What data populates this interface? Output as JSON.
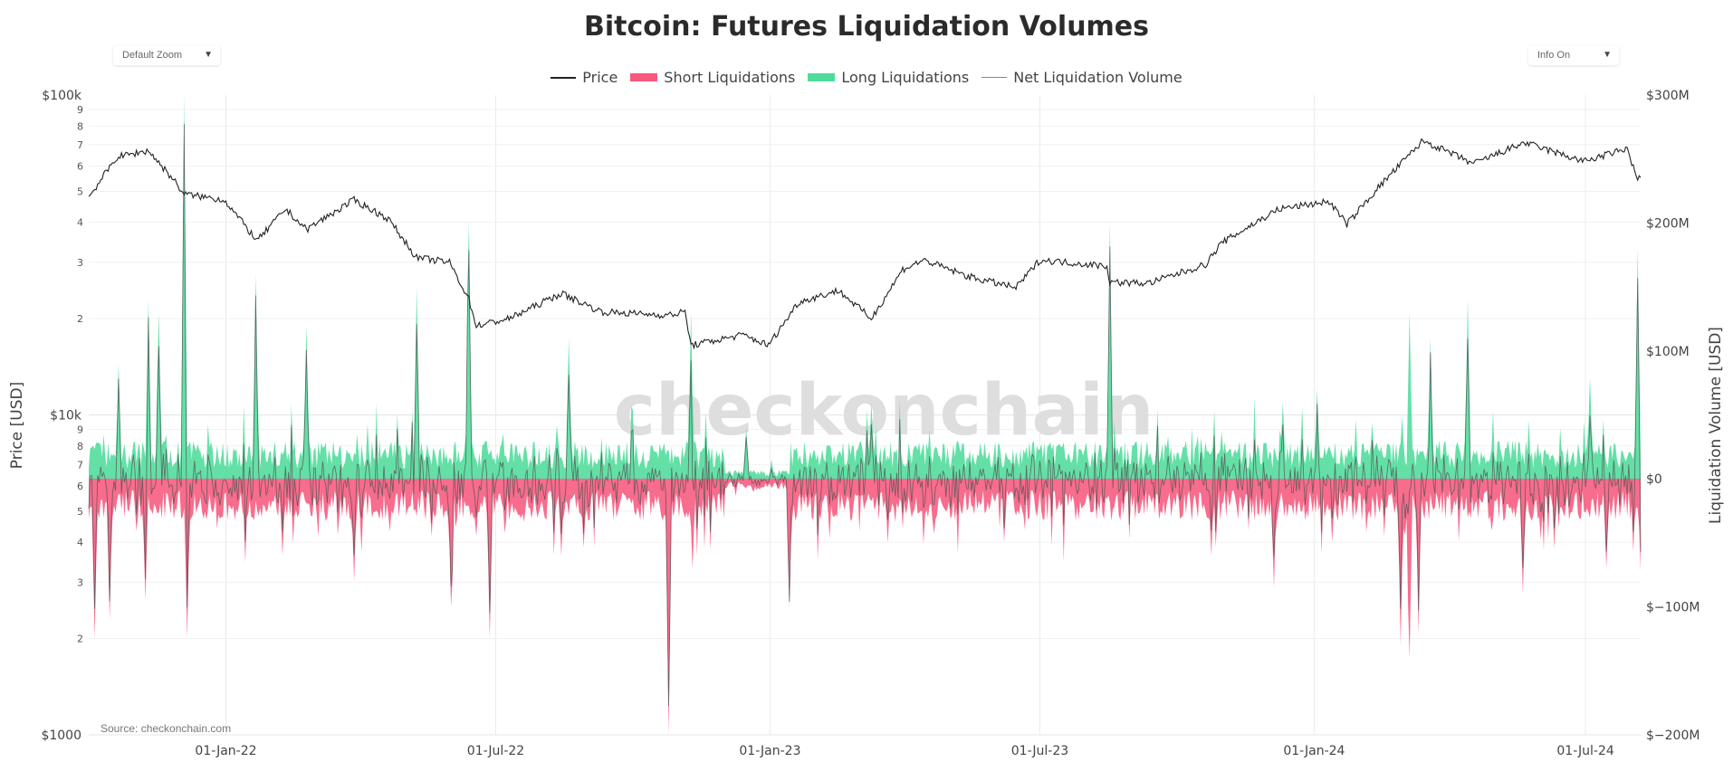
{
  "title": "Bitcoin: Futures Liquidation Volumes",
  "controls": {
    "zoom_label": "Default Zoom",
    "info_label": "Info On"
  },
  "legend": {
    "price": "Price",
    "short": "Short Liquidations",
    "long": "Long Liquidations",
    "net": "Net Liquidation Volume"
  },
  "axes": {
    "left_title": "Price [USD]",
    "right_title": "Liquidation Volume [USD]"
  },
  "source": "Source: checkonchain.com",
  "watermark": "checkonchain",
  "colors": {
    "price": "#222222",
    "short": "#f7587d",
    "long": "#4fdc9b",
    "net": "#555555",
    "grid": "#ebebeb"
  },
  "chart_data": {
    "type": "line",
    "xrange": [
      "2021-10-01",
      "2024-08-07"
    ],
    "x_ticks": [
      "01-Jan-22",
      "01-Jul-22",
      "01-Jan-23",
      "01-Jul-23",
      "01-Jan-24",
      "01-Jul-24"
    ],
    "y_left": {
      "scale": "log",
      "range": [
        1000,
        100000
      ],
      "major_ticks": [
        {
          "value": 1000,
          "label": "$1000"
        },
        {
          "value": 10000,
          "label": "$10k"
        },
        {
          "value": 100000,
          "label": "$100k"
        }
      ],
      "minor_tick_labels": [
        "2",
        "3",
        "4",
        "5",
        "6",
        "7",
        "8",
        "9"
      ]
    },
    "y_right": {
      "scale": "linear",
      "range": [
        -200,
        300
      ],
      "unit": "M USD",
      "ticks": [
        {
          "value": 300,
          "label": "$300M"
        },
        {
          "value": 200,
          "label": "$200M"
        },
        {
          "value": 100,
          "label": "$100M"
        },
        {
          "value": 0,
          "label": "$0"
        },
        {
          "value": -100,
          "label": "$−100M"
        },
        {
          "value": -200,
          "label": "$−200M"
        }
      ]
    },
    "series": [
      {
        "name": "Price",
        "axis": "left",
        "points": [
          [
            "2021-10-01",
            48000
          ],
          [
            "2021-10-20",
            64000
          ],
          [
            "2021-11-10",
            67000
          ],
          [
            "2021-11-26",
            55000
          ],
          [
            "2021-12-04",
            49000
          ],
          [
            "2021-12-31",
            47000
          ],
          [
            "2022-01-22",
            35000
          ],
          [
            "2022-02-10",
            44000
          ],
          [
            "2022-02-24",
            38000
          ],
          [
            "2022-03-28",
            47000
          ],
          [
            "2022-04-20",
            41000
          ],
          [
            "2022-05-09",
            31000
          ],
          [
            "2022-05-31",
            30000
          ],
          [
            "2022-06-13",
            23000
          ],
          [
            "2022-06-18",
            19000
          ],
          [
            "2022-07-10",
            20000
          ],
          [
            "2022-08-14",
            24000
          ],
          [
            "2022-09-10",
            21000
          ],
          [
            "2022-10-25",
            20500
          ],
          [
            "2022-11-05",
            21000
          ],
          [
            "2022-11-09",
            16500
          ],
          [
            "2022-12-14",
            17800
          ],
          [
            "2022-12-31",
            16500
          ],
          [
            "2023-01-20",
            22500
          ],
          [
            "2023-02-16",
            24500
          ],
          [
            "2023-03-10",
            20000
          ],
          [
            "2023-03-31",
            28500
          ],
          [
            "2023-04-14",
            30500
          ],
          [
            "2023-05-15",
            27000
          ],
          [
            "2023-06-15",
            25000
          ],
          [
            "2023-07-01",
            30500
          ],
          [
            "2023-08-15",
            29200
          ],
          [
            "2023-08-17",
            26000
          ],
          [
            "2023-09-12",
            25800
          ],
          [
            "2023-10-20",
            29500
          ],
          [
            "2023-10-31",
            34500
          ],
          [
            "2023-12-08",
            44000
          ],
          [
            "2024-01-11",
            46500
          ],
          [
            "2024-01-23",
            39500
          ],
          [
            "2024-02-14",
            52000
          ],
          [
            "2024-03-14",
            72000
          ],
          [
            "2024-04-17",
            61000
          ],
          [
            "2024-05-21",
            71000
          ],
          [
            "2024-06-30",
            62000
          ],
          [
            "2024-07-29",
            68000
          ],
          [
            "2024-08-05",
            54000
          ],
          [
            "2024-08-07",
            56000
          ]
        ]
      },
      {
        "name": "Long Liquidations",
        "axis": "right",
        "baseline_musd": 20,
        "spikes": [
          [
            "2021-10-21",
            90
          ],
          [
            "2021-11-10",
            140
          ],
          [
            "2021-11-17",
            130
          ],
          [
            "2021-12-04",
            300
          ],
          [
            "2022-01-21",
            160
          ],
          [
            "2022-02-24",
            120
          ],
          [
            "2022-05-09",
            150
          ],
          [
            "2022-06-13",
            200
          ],
          [
            "2022-08-19",
            110
          ],
          [
            "2022-11-09",
            130
          ],
          [
            "2022-12-16",
            40
          ],
          [
            "2023-03-10",
            60
          ],
          [
            "2023-08-17",
            200
          ],
          [
            "2023-12-11",
            60
          ],
          [
            "2024-01-03",
            70
          ],
          [
            "2024-03-05",
            130
          ],
          [
            "2024-03-19",
            110
          ],
          [
            "2024-04-13",
            140
          ],
          [
            "2024-07-04",
            80
          ],
          [
            "2024-08-05",
            180
          ]
        ]
      },
      {
        "name": "Short Liquidations",
        "axis": "right",
        "baseline_musd": -22,
        "spikes": [
          [
            "2021-10-05",
            -125
          ],
          [
            "2021-10-15",
            -110
          ],
          [
            "2021-11-08",
            -95
          ],
          [
            "2021-12-06",
            -125
          ],
          [
            "2022-02-08",
            -60
          ],
          [
            "2022-03-28",
            -80
          ],
          [
            "2022-06-01",
            -100
          ],
          [
            "2022-06-27",
            -125
          ],
          [
            "2022-08-14",
            -60
          ],
          [
            "2022-10-25",
            -200
          ],
          [
            "2022-11-10",
            -70
          ],
          [
            "2023-01-14",
            -100
          ],
          [
            "2023-03-21",
            -50
          ],
          [
            "2023-10-24",
            -60
          ],
          [
            "2023-12-05",
            -85
          ],
          [
            "2024-02-28",
            -130
          ],
          [
            "2024-03-05",
            -140
          ],
          [
            "2024-03-11",
            -110
          ],
          [
            "2024-05-20",
            -90
          ],
          [
            "2024-07-15",
            -70
          ],
          [
            "2024-08-07",
            -72
          ]
        ]
      },
      {
        "name": "Net Liquidation Volume",
        "axis": "right"
      }
    ]
  }
}
